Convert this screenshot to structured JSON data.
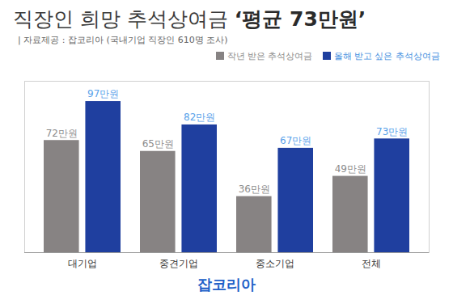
{
  "chart_data": {
    "type": "bar",
    "title": "직장인 희망 추석상여금 ‘평균 73만원’",
    "subtitle": "| 자료제공 : 잡코리아 (국내기업 직장인 610명 조사)",
    "caption": "잡코리아",
    "categories": [
      "대기업",
      "중견기업",
      "중소기업",
      "전체"
    ],
    "series": [
      {
        "name": "작년 받은 추석상여금",
        "color": "#878383",
        "values": [
          72,
          65,
          36,
          49
        ],
        "value_labels": [
          "72만원",
          "65만원",
          "36만원",
          "49만원"
        ]
      },
      {
        "name": "올해 받고 싶은 추석상여금",
        "color": "#1f3f9f",
        "values": [
          97,
          82,
          67,
          73
        ],
        "value_labels": [
          "97만원",
          "82만원",
          "67만원",
          "73만원"
        ]
      }
    ],
    "ylim": [
      0,
      110
    ],
    "yticks": [],
    "grid": false,
    "legend": "top-right",
    "data_labels": true,
    "tick_labels": "x"
  }
}
